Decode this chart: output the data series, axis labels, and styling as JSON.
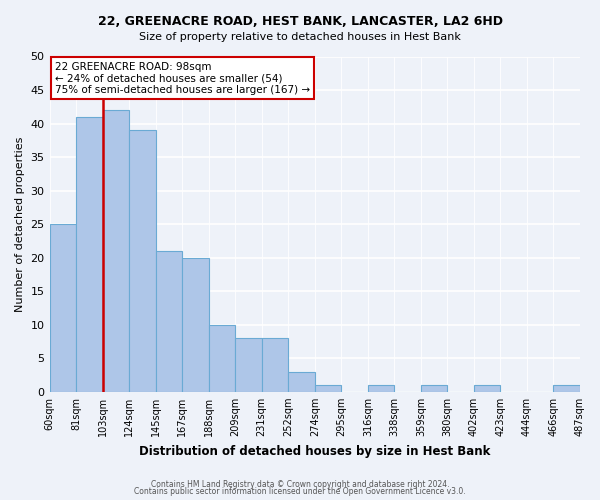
{
  "title1": "22, GREENACRE ROAD, HEST BANK, LANCASTER, LA2 6HD",
  "title2": "Size of property relative to detached houses in Hest Bank",
  "xlabel": "Distribution of detached houses by size in Hest Bank",
  "ylabel": "Number of detached properties",
  "bin_labels": [
    "60sqm",
    "81sqm",
    "103sqm",
    "124sqm",
    "145sqm",
    "167sqm",
    "188sqm",
    "209sqm",
    "231sqm",
    "252sqm",
    "274sqm",
    "295sqm",
    "316sqm",
    "338sqm",
    "359sqm",
    "380sqm",
    "402sqm",
    "423sqm",
    "444sqm",
    "466sqm",
    "487sqm"
  ],
  "bar_heights": [
    25,
    41,
    42,
    39,
    21,
    20,
    10,
    8,
    8,
    3,
    1,
    0,
    1,
    0,
    1,
    0,
    1,
    0,
    0,
    1
  ],
  "bar_color": "#aec6e8",
  "bar_edge_color": "#6aaad4",
  "vline_position": 2,
  "vline_color": "#cc0000",
  "annotation_title": "22 GREENACRE ROAD: 98sqm",
  "annotation_line1": "← 24% of detached houses are smaller (54)",
  "annotation_line2": "75% of semi-detached houses are larger (167) →",
  "annotation_box_color": "#ffffff",
  "annotation_box_edge": "#cc0000",
  "ylim": [
    0,
    50
  ],
  "yticks": [
    0,
    5,
    10,
    15,
    20,
    25,
    30,
    35,
    40,
    45,
    50
  ],
  "footer1": "Contains HM Land Registry data © Crown copyright and database right 2024.",
  "footer2": "Contains public sector information licensed under the Open Government Licence v3.0.",
  "bg_color": "#eef2f9"
}
